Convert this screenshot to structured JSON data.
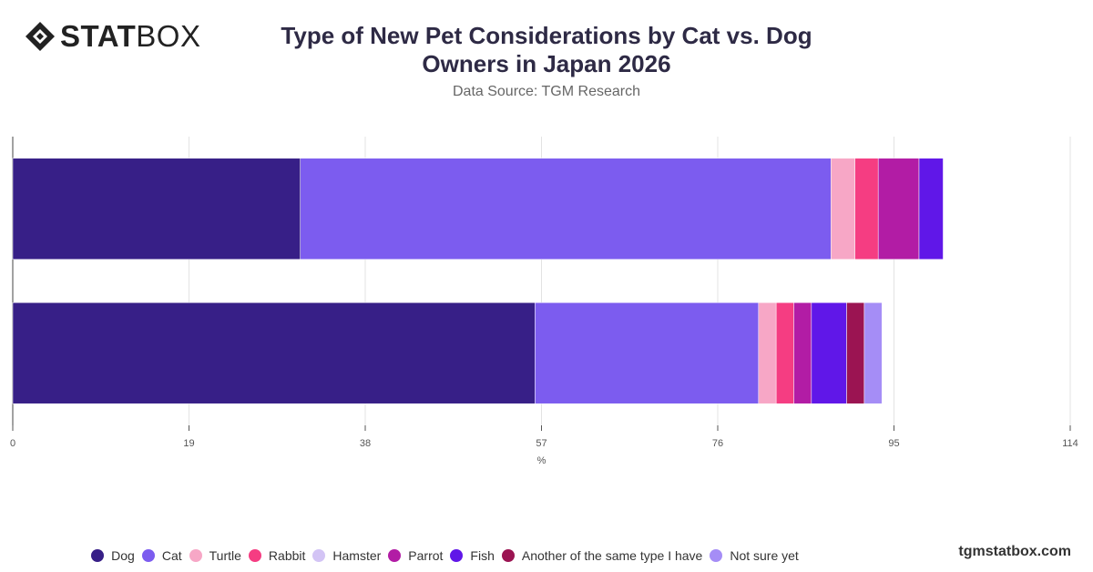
{
  "logo": {
    "bold": "STAT",
    "light": "BOX"
  },
  "brand_url": "tgmstatbox.com",
  "chart_data": {
    "type": "bar",
    "orientation": "horizontal",
    "stacked": true,
    "title": "Type of New Pet Considerations by Cat vs. Dog Owners in Japan 2026",
    "subtitle": "Data Source: TGM Research",
    "xlabel": "%",
    "ylabel": "",
    "xlim": [
      0,
      114
    ],
    "xticks": [
      0,
      19,
      38,
      57,
      76,
      95,
      114
    ],
    "grid": true,
    "legend_position": "bottom",
    "categories": [
      "",
      ""
    ],
    "series": [
      {
        "name": "Dog",
        "color": "#371f87",
        "values": [
          31,
          56.3
        ]
      },
      {
        "name": "Cat",
        "color": "#7c5cef",
        "values": [
          57.2,
          24.1
        ]
      },
      {
        "name": "Turtle",
        "color": "#f7a7c6",
        "values": [
          2.6,
          1.9
        ]
      },
      {
        "name": "Rabbit",
        "color": "#f53d82",
        "values": [
          2.5,
          1.9
        ]
      },
      {
        "name": "Hamster",
        "color": "#d3c4f5",
        "values": [
          0,
          0
        ]
      },
      {
        "name": "Parrot",
        "color": "#b21ca5",
        "values": [
          4.4,
          1.9
        ]
      },
      {
        "name": "Fish",
        "color": "#6017e8",
        "values": [
          2.6,
          3.8
        ]
      },
      {
        "name": "Another of the same type I have",
        "color": "#9b1452",
        "values": [
          0,
          1.9
        ]
      },
      {
        "name": "Not sure yet",
        "color": "#a58df6",
        "values": [
          0,
          1.9
        ]
      }
    ]
  }
}
